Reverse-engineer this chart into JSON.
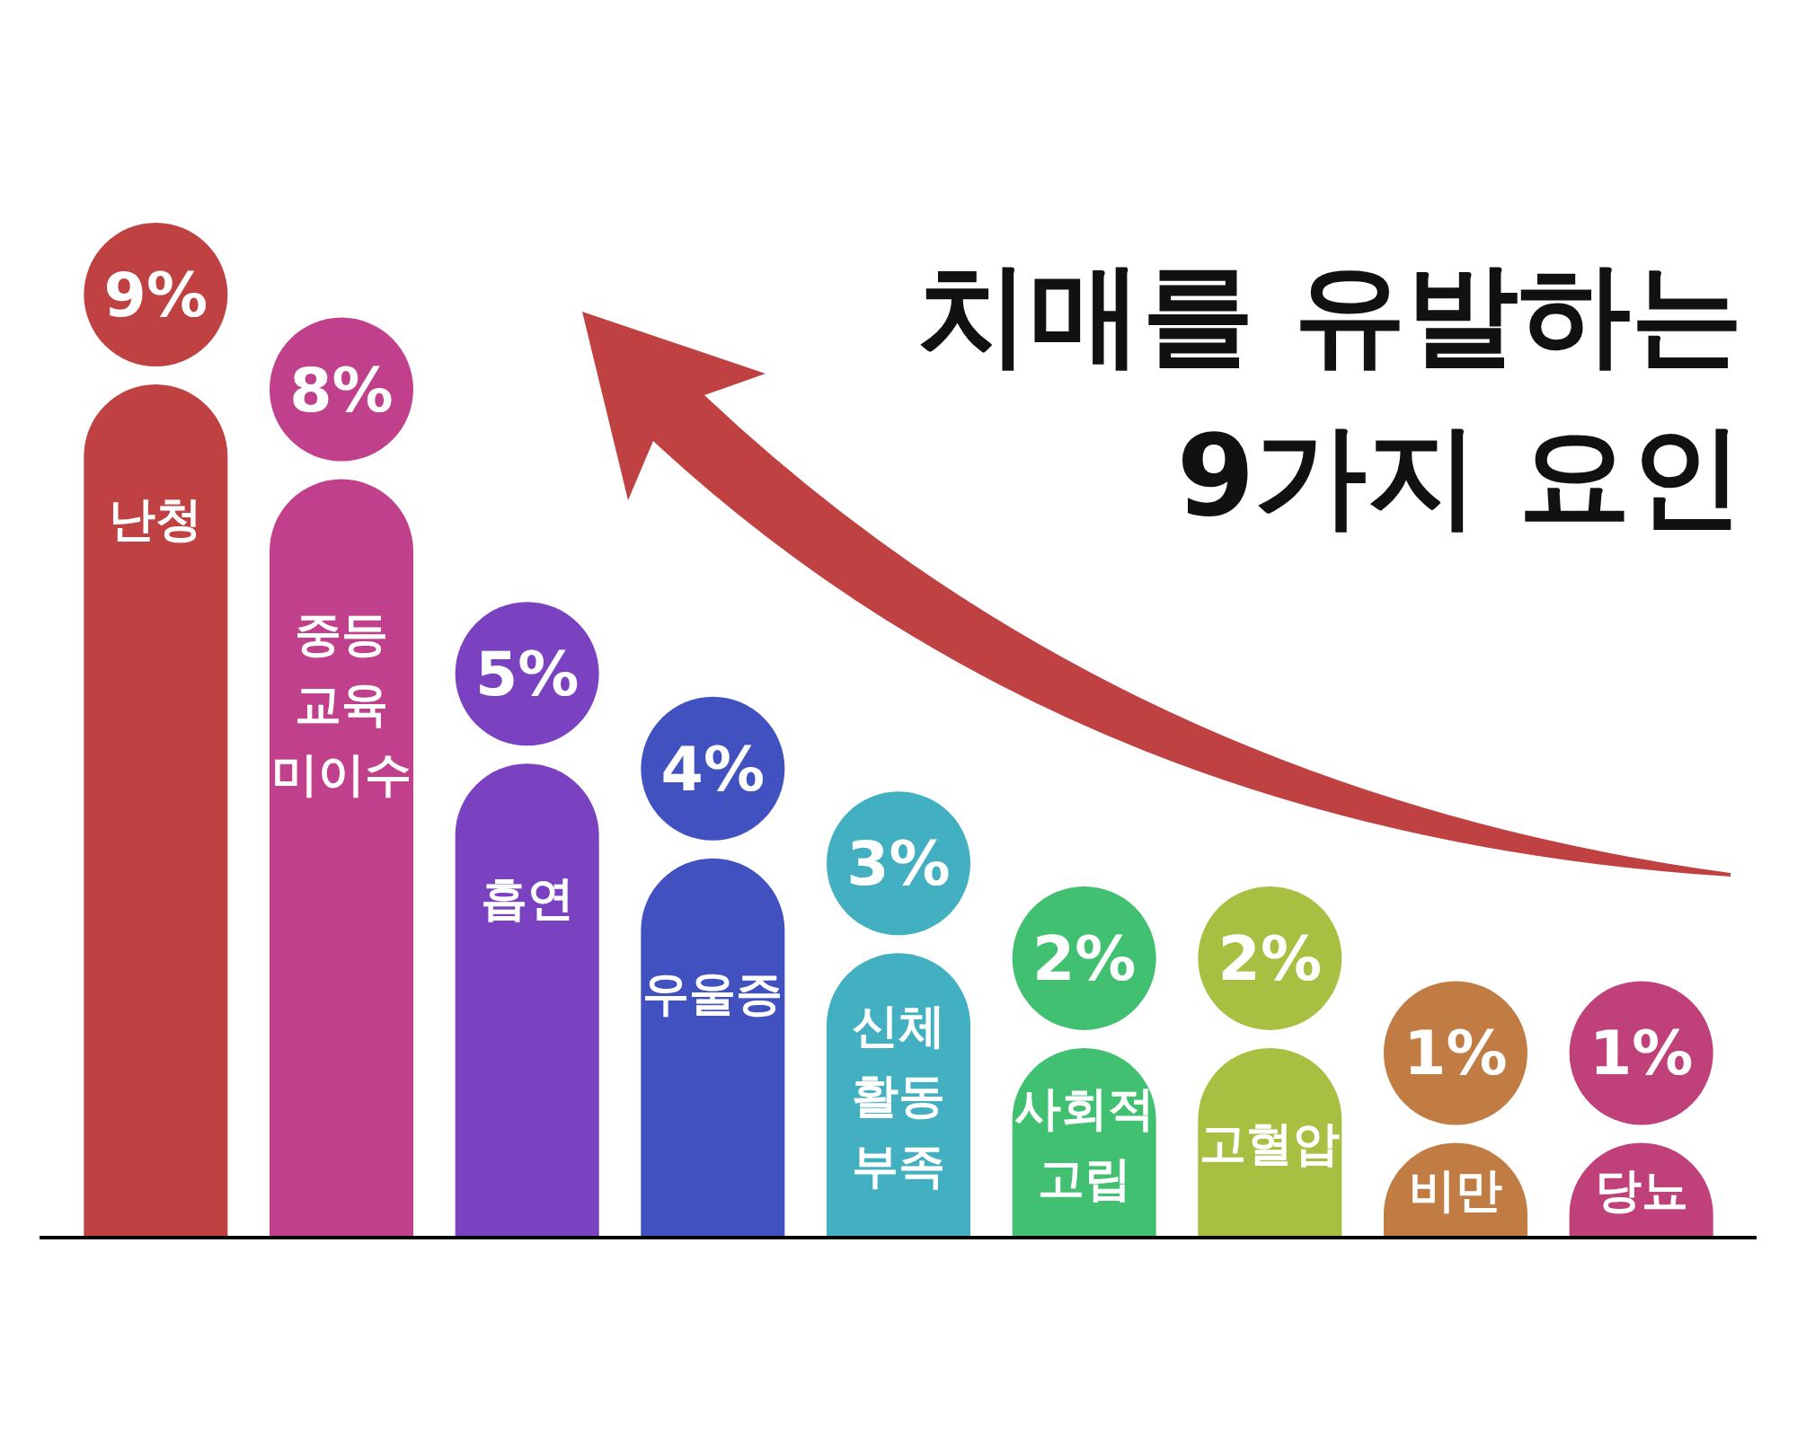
{
  "chart_data": {
    "type": "bar",
    "title": "치매를 유발하는 9가지 요인",
    "categories": [
      "난청",
      "중등 교육 미이수",
      "흡연",
      "우울증",
      "신체 활동 부족",
      "사회적 고립",
      "고혈압",
      "비만",
      "당뇨"
    ],
    "values": [
      9,
      8,
      5,
      4,
      3,
      2,
      2,
      1,
      1
    ],
    "colors": [
      "#c04141",
      "#c0408c",
      "#7a42c0",
      "#4152c0",
      "#42b0c0",
      "#42c072",
      "#a8c042",
      "#c07c42",
      "#c0407a"
    ],
    "value_labels": [
      "9%",
      "8%",
      "5%",
      "4%",
      "3%",
      "2%",
      "2%",
      "1%",
      "1%"
    ]
  }
}
